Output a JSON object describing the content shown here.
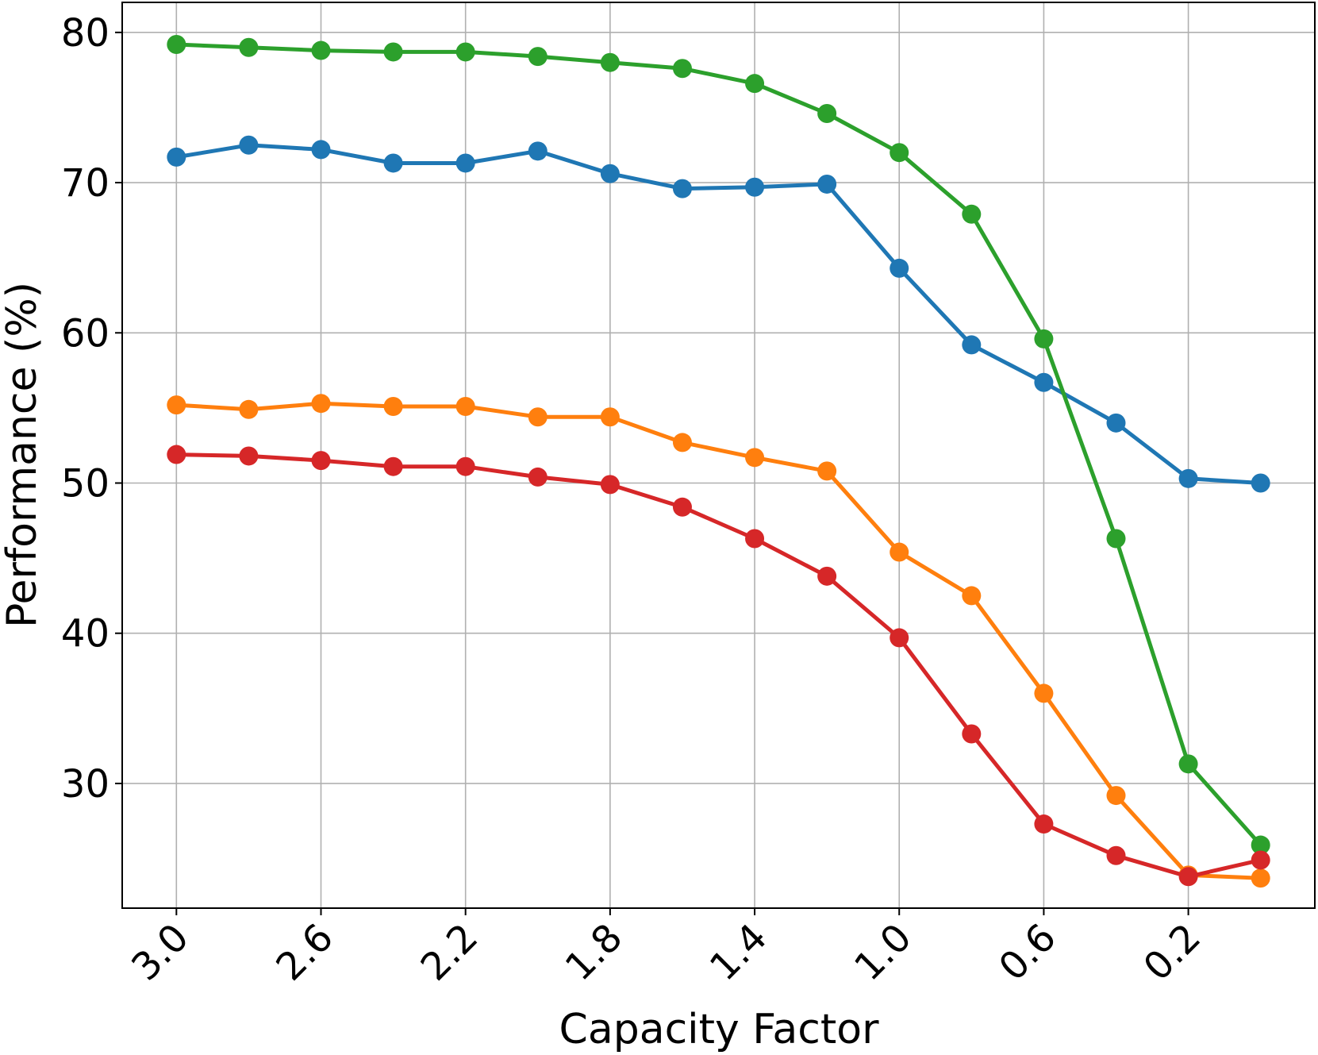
{
  "chart_data": {
    "type": "line",
    "title": "",
    "xlabel": "Capacity Factor",
    "ylabel": "Performance (%)",
    "x": [
      3.0,
      2.8,
      2.6,
      2.4,
      2.2,
      2.0,
      1.8,
      1.6,
      1.4,
      1.2,
      1.0,
      0.8,
      0.6,
      0.4,
      0.2,
      0.0
    ],
    "xticks": [
      3.0,
      2.6,
      2.2,
      1.8,
      1.4,
      1.0,
      0.6,
      0.2
    ],
    "xtick_labels": [
      "3.0",
      "2.6",
      "2.2",
      "1.8",
      "1.4",
      "1.0",
      "0.6",
      "0.2"
    ],
    "xlim": [
      3.15,
      -0.15
    ],
    "yticks": [
      30,
      40,
      50,
      60,
      70,
      80
    ],
    "ytick_labels": [
      "30",
      "40",
      "50",
      "60",
      "70",
      "80"
    ],
    "ylim": [
      21.7,
      82
    ],
    "grid": true,
    "legend": null,
    "series": [
      {
        "name": "blue",
        "color": "#1f77b4",
        "values": [
          71.7,
          72.5,
          72.2,
          71.3,
          71.3,
          72.1,
          70.6,
          69.6,
          69.7,
          69.9,
          64.3,
          59.2,
          56.7,
          54.0,
          50.3,
          50.0
        ]
      },
      {
        "name": "orange",
        "color": "#ff7f0e",
        "values": [
          55.2,
          54.9,
          55.3,
          55.1,
          55.1,
          54.4,
          54.4,
          52.7,
          51.7,
          50.8,
          45.4,
          42.5,
          36.0,
          29.2,
          23.9,
          23.7
        ]
      },
      {
        "name": "green",
        "color": "#2ca02c",
        "values": [
          79.2,
          79.0,
          78.8,
          78.7,
          78.7,
          78.4,
          78.0,
          77.6,
          76.6,
          74.6,
          72.0,
          67.9,
          59.6,
          46.3,
          31.3,
          25.9
        ]
      },
      {
        "name": "red",
        "color": "#d62728",
        "values": [
          51.9,
          51.8,
          51.5,
          51.1,
          51.1,
          50.4,
          49.9,
          48.4,
          46.3,
          43.8,
          39.7,
          33.3,
          27.3,
          25.2,
          23.8,
          24.9
        ]
      }
    ]
  }
}
